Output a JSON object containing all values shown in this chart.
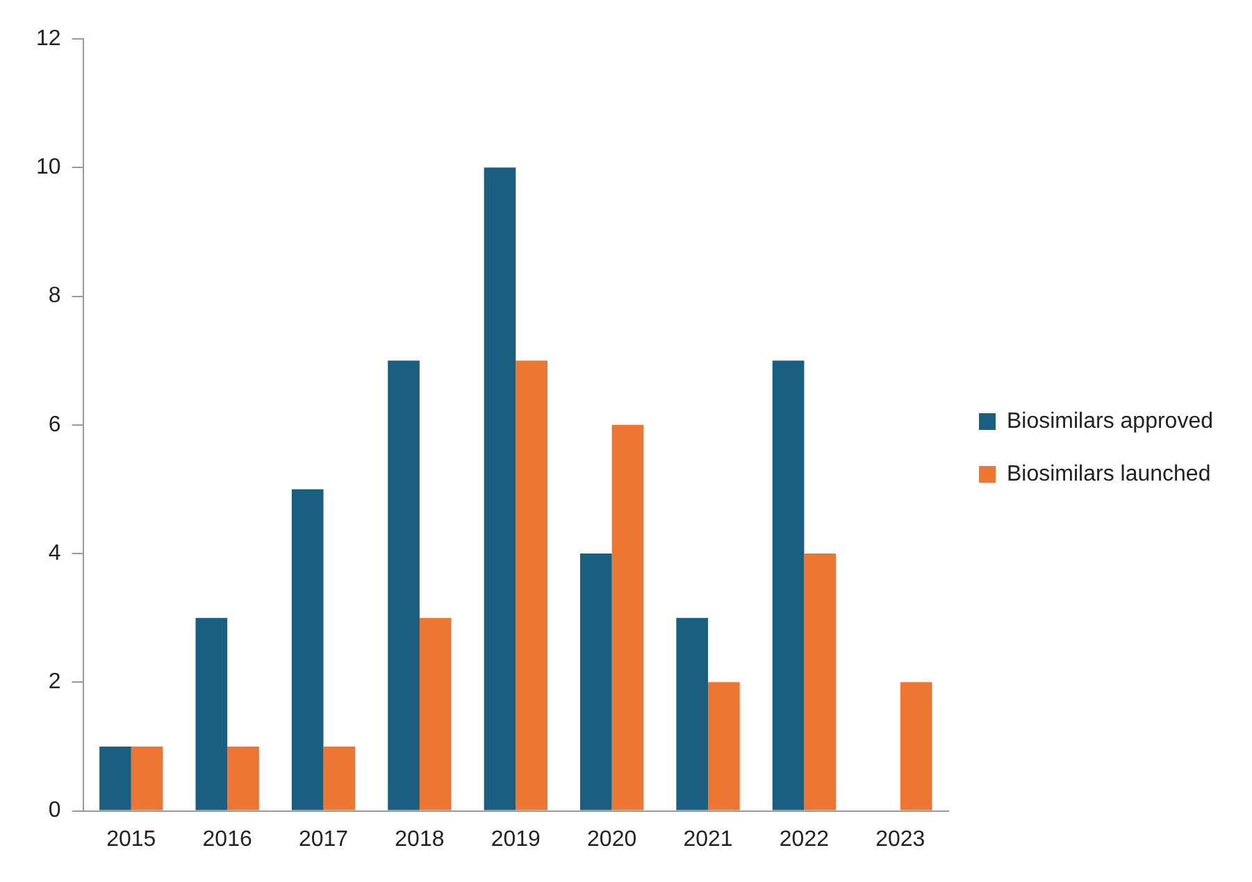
{
  "chart_data": {
    "type": "bar",
    "categories": [
      "2015",
      "2016",
      "2017",
      "2018",
      "2019",
      "2020",
      "2021",
      "2022",
      "2023"
    ],
    "series": [
      {
        "name": "Biosimilars approved",
        "color": "#1a5e80",
        "values": [
          1,
          3,
          5,
          7,
          10,
          4,
          3,
          7,
          null
        ]
      },
      {
        "name": "Biosimilars launched",
        "color": "#ed7633",
        "values": [
          1,
          1,
          1,
          3,
          7,
          6,
          2,
          4,
          2
        ]
      }
    ],
    "ylim": [
      0,
      12
    ],
    "yticks": [
      0,
      2,
      4,
      6,
      8,
      10,
      12
    ],
    "grid": false,
    "legend": "right"
  }
}
